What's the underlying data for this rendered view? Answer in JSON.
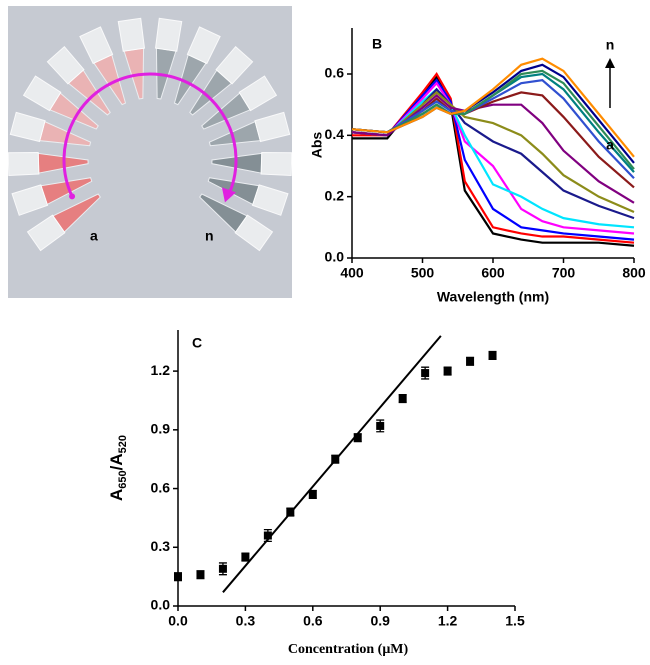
{
  "photo": {
    "label_a": "a",
    "label_n": "n"
  },
  "chart_data": [
    {
      "type": "line",
      "panel": "B",
      "xlabel": "Wavelength (nm)",
      "ylabel": "Abs",
      "annotations": {
        "top": "n",
        "bottom": "a"
      },
      "x": [
        400,
        450,
        500,
        520,
        540,
        560,
        600,
        640,
        670,
        700,
        750,
        800
      ],
      "xlim": [
        400,
        800
      ],
      "xticks": [
        400,
        500,
        600,
        700,
        800
      ],
      "ylim": [
        0,
        0.75
      ],
      "yticks": [
        {
          "value": 0,
          "label": "0.0"
        },
        0.2,
        0.4,
        0.6
      ],
      "series": [
        {
          "color": "#000000",
          "values": [
            0.39,
            0.39,
            0.53,
            0.59,
            0.5,
            0.22,
            0.08,
            0.06,
            0.05,
            0.05,
            0.05,
            0.04
          ]
        },
        {
          "color": "#ff0000",
          "values": [
            0.4,
            0.4,
            0.54,
            0.6,
            0.52,
            0.25,
            0.1,
            0.08,
            0.07,
            0.07,
            0.06,
            0.05
          ]
        },
        {
          "color": "#0000ff",
          "values": [
            0.41,
            0.4,
            0.53,
            0.58,
            0.51,
            0.32,
            0.16,
            0.1,
            0.09,
            0.08,
            0.07,
            0.06
          ]
        },
        {
          "color": "#ff00ff",
          "values": [
            0.41,
            0.4,
            0.52,
            0.57,
            0.5,
            0.38,
            0.3,
            0.16,
            0.12,
            0.1,
            0.09,
            0.08
          ]
        },
        {
          "color": "#00e5ff",
          "values": [
            0.41,
            0.4,
            0.51,
            0.55,
            0.5,
            0.4,
            0.24,
            0.2,
            0.16,
            0.13,
            0.11,
            0.1
          ]
        },
        {
          "color": "#1a1a8c",
          "values": [
            0.41,
            0.4,
            0.5,
            0.55,
            0.5,
            0.44,
            0.38,
            0.34,
            0.28,
            0.22,
            0.17,
            0.13
          ]
        },
        {
          "color": "#8c8c1a",
          "values": [
            0.41,
            0.4,
            0.5,
            0.54,
            0.5,
            0.46,
            0.44,
            0.4,
            0.34,
            0.27,
            0.2,
            0.15
          ]
        },
        {
          "color": "#800080",
          "values": [
            0.41,
            0.4,
            0.49,
            0.53,
            0.49,
            0.48,
            0.5,
            0.5,
            0.44,
            0.35,
            0.25,
            0.18
          ]
        },
        {
          "color": "#8b1a1a",
          "values": [
            0.42,
            0.41,
            0.48,
            0.52,
            0.48,
            0.47,
            0.51,
            0.54,
            0.53,
            0.46,
            0.33,
            0.23
          ]
        },
        {
          "color": "#3050d0",
          "values": [
            0.42,
            0.41,
            0.48,
            0.51,
            0.48,
            0.47,
            0.52,
            0.57,
            0.58,
            0.52,
            0.38,
            0.26
          ]
        },
        {
          "color": "#008080",
          "values": [
            0.42,
            0.41,
            0.47,
            0.5,
            0.47,
            0.47,
            0.53,
            0.59,
            0.6,
            0.55,
            0.41,
            0.28
          ]
        },
        {
          "color": "#2e8b57",
          "values": [
            0.42,
            0.41,
            0.47,
            0.5,
            0.47,
            0.47,
            0.53,
            0.6,
            0.61,
            0.57,
            0.43,
            0.29
          ]
        },
        {
          "color": "#00008b",
          "values": [
            0.42,
            0.41,
            0.46,
            0.49,
            0.47,
            0.48,
            0.54,
            0.61,
            0.63,
            0.59,
            0.45,
            0.31
          ]
        },
        {
          "color": "#ff8c00",
          "values": [
            0.42,
            0.41,
            0.46,
            0.49,
            0.47,
            0.48,
            0.55,
            0.63,
            0.65,
            0.61,
            0.47,
            0.33
          ]
        }
      ]
    },
    {
      "type": "scatter",
      "panel": "C",
      "xlabel": "Concentration (μM)",
      "ylabel_parts": [
        "A",
        "650",
        "/A",
        "520"
      ],
      "x": [
        0.0,
        0.1,
        0.2,
        0.3,
        0.4,
        0.5,
        0.6,
        0.7,
        0.8,
        0.9,
        1.0,
        1.1,
        1.2,
        1.3,
        1.4
      ],
      "values": [
        0.15,
        0.16,
        0.19,
        0.25,
        0.36,
        0.48,
        0.57,
        0.75,
        0.86,
        0.92,
        1.06,
        1.19,
        1.2,
        1.25,
        1.28
      ],
      "errors": [
        0.02,
        0.02,
        0.03,
        0.02,
        0.03,
        0.02,
        0.02,
        0.02,
        0.02,
        0.03,
        0.02,
        0.03,
        0.02,
        0.02,
        0.02
      ],
      "color": "#000000",
      "fit_line": {
        "x": [
          0.2,
          1.17
        ],
        "y": [
          0.07,
          1.38
        ]
      },
      "xlim": [
        0,
        1.5
      ],
      "xticks": [
        {
          "value": 0,
          "label": "0.0"
        },
        0.3,
        0.6,
        0.9,
        1.2,
        1.5
      ],
      "ylim": [
        0,
        1.41
      ],
      "yticks": [
        {
          "value": 0,
          "label": "0.0"
        },
        0.3,
        0.6,
        0.9,
        1.2
      ]
    }
  ]
}
